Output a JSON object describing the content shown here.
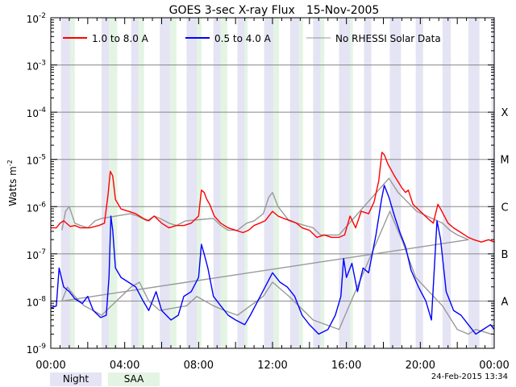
{
  "chart_data": {
    "type": "line",
    "title": "GOES 3-sec X-ray Flux",
    "date": "15-Nov-2005",
    "ylabel_base": "Watts m",
    "ylabel_exp": "-2",
    "ylim_log10": [
      -9,
      -2
    ],
    "xlim_hours": [
      0,
      24
    ],
    "x_ticks": [
      {
        "h": 0,
        "label": "00:00"
      },
      {
        "h": 4,
        "label": "04:00"
      },
      {
        "h": 8,
        "label": "08:00"
      },
      {
        "h": 12,
        "label": "12:00"
      },
      {
        "h": 16,
        "label": "16:00"
      },
      {
        "h": 20,
        "label": "20:00"
      },
      {
        "h": 24,
        "label": "00:00"
      }
    ],
    "y_ticks": [
      {
        "e": -2,
        "base": "10",
        "exp": "-2"
      },
      {
        "e": -3,
        "base": "10",
        "exp": "-3"
      },
      {
        "e": -4,
        "base": "10",
        "exp": "-4"
      },
      {
        "e": -5,
        "base": "10",
        "exp": "-5"
      },
      {
        "e": -6,
        "base": "10",
        "exp": "-6"
      },
      {
        "e": -7,
        "base": "10",
        "exp": "-7"
      },
      {
        "e": -8,
        "base": "10",
        "exp": "-8"
      },
      {
        "e": -9,
        "base": "10",
        "exp": "-9"
      }
    ],
    "flare_classes": [
      {
        "label": "X",
        "e": -4
      },
      {
        "label": "M",
        "e": -5
      },
      {
        "label": "C",
        "e": -6
      },
      {
        "label": "B",
        "e": -7
      },
      {
        "label": "A",
        "e": -8
      }
    ],
    "legend": [
      {
        "label": "1.0 to 8.0 A",
        "color": "#ff0000"
      },
      {
        "label": "0.5 to 4.0 A",
        "color": "#0000ff"
      },
      {
        "label": "No RHESSI Solar Data",
        "color": "#999999"
      }
    ],
    "night_bands_hours": [
      [
        0.55,
        1.05
      ],
      [
        2.75,
        3.15
      ],
      [
        4.35,
        4.75
      ],
      [
        5.9,
        6.45
      ],
      [
        7.35,
        7.9
      ],
      [
        8.8,
        9.2
      ],
      [
        10.1,
        10.5
      ],
      [
        11.55,
        12.05
      ],
      [
        12.95,
        13.45
      ],
      [
        14.2,
        14.6
      ],
      [
        15.6,
        16.2
      ],
      [
        16.95,
        17.35
      ],
      [
        18.35,
        18.95
      ],
      [
        19.75,
        20.15
      ],
      [
        21.2,
        21.65
      ],
      [
        22.6,
        23.2
      ],
      [
        23.85,
        24
      ]
    ],
    "saa_bands_hours": [
      [
        1.05,
        1.3
      ],
      [
        3.15,
        3.6
      ],
      [
        4.75,
        5.05
      ],
      [
        6.45,
        6.8
      ],
      [
        7.9,
        8.15
      ],
      [
        9.2,
        9.55
      ],
      [
        10.5,
        10.65
      ],
      [
        12.05,
        12.35
      ],
      [
        13.45,
        13.65
      ],
      [
        14.6,
        14.8
      ],
      [
        16.2,
        16.35
      ]
    ],
    "series": [
      {
        "name": "1.0 to 8.0 A",
        "color": "#ff0000",
        "points": [
          [
            0,
            -6.45
          ],
          [
            0.3,
            -6.45
          ],
          [
            0.5,
            -6.35
          ],
          [
            0.7,
            -6.3
          ],
          [
            1.05,
            -6.42
          ],
          [
            1.3,
            -6.4
          ],
          [
            1.6,
            -6.45
          ],
          [
            2.1,
            -6.45
          ],
          [
            2.6,
            -6.4
          ],
          [
            2.9,
            -6.35
          ],
          [
            3.1,
            -5.75
          ],
          [
            3.22,
            -5.25
          ],
          [
            3.35,
            -5.35
          ],
          [
            3.5,
            -5.85
          ],
          [
            3.8,
            -6.05
          ],
          [
            4.2,
            -6.1
          ],
          [
            4.6,
            -6.15
          ],
          [
            5.0,
            -6.25
          ],
          [
            5.3,
            -6.3
          ],
          [
            5.6,
            -6.2
          ],
          [
            6.0,
            -6.35
          ],
          [
            6.4,
            -6.45
          ],
          [
            6.8,
            -6.4
          ],
          [
            7.2,
            -6.4
          ],
          [
            7.6,
            -6.35
          ],
          [
            8.0,
            -6.2
          ],
          [
            8.15,
            -5.65
          ],
          [
            8.3,
            -5.7
          ],
          [
            8.45,
            -5.85
          ],
          [
            8.6,
            -5.95
          ],
          [
            8.85,
            -6.2
          ],
          [
            9.2,
            -6.35
          ],
          [
            9.6,
            -6.45
          ],
          [
            10.0,
            -6.5
          ],
          [
            10.4,
            -6.55
          ],
          [
            10.7,
            -6.5
          ],
          [
            11.0,
            -6.4
          ],
          [
            11.3,
            -6.35
          ],
          [
            11.6,
            -6.3
          ],
          [
            12.0,
            -6.1
          ],
          [
            12.3,
            -6.2
          ],
          [
            12.6,
            -6.25
          ],
          [
            13.0,
            -6.3
          ],
          [
            13.3,
            -6.35
          ],
          [
            13.6,
            -6.45
          ],
          [
            14.0,
            -6.5
          ],
          [
            14.4,
            -6.65
          ],
          [
            14.8,
            -6.6
          ],
          [
            15.2,
            -6.65
          ],
          [
            15.6,
            -6.65
          ],
          [
            15.9,
            -6.6
          ],
          [
            16.2,
            -6.2
          ],
          [
            16.5,
            -6.45
          ],
          [
            16.8,
            -6.1
          ],
          [
            17.2,
            -6.15
          ],
          [
            17.5,
            -5.9
          ],
          [
            17.75,
            -5.45
          ],
          [
            17.92,
            -4.85
          ],
          [
            18.05,
            -4.9
          ],
          [
            18.25,
            -5.1
          ],
          [
            18.6,
            -5.35
          ],
          [
            19.0,
            -5.6
          ],
          [
            19.2,
            -5.7
          ],
          [
            19.35,
            -5.65
          ],
          [
            19.6,
            -5.95
          ],
          [
            20.0,
            -6.1
          ],
          [
            20.4,
            -6.25
          ],
          [
            20.7,
            -6.35
          ],
          [
            20.95,
            -5.95
          ],
          [
            21.1,
            -6.05
          ],
          [
            21.5,
            -6.35
          ],
          [
            21.8,
            -6.45
          ],
          [
            22.2,
            -6.55
          ],
          [
            22.6,
            -6.65
          ],
          [
            22.9,
            -6.7
          ],
          [
            23.3,
            -6.75
          ],
          [
            23.7,
            -6.7
          ],
          [
            24,
            -6.75
          ]
        ]
      },
      {
        "name": "0.5 to 4.0 A",
        "color": "#0000ff",
        "points": [
          [
            0,
            -8.15
          ],
          [
            0.3,
            -8.1
          ],
          [
            0.45,
            -7.3
          ],
          [
            0.7,
            -7.7
          ],
          [
            1.0,
            -7.8
          ],
          [
            1.3,
            -7.95
          ],
          [
            1.7,
            -8.05
          ],
          [
            2.0,
            -7.9
          ],
          [
            2.3,
            -8.2
          ],
          [
            2.7,
            -8.35
          ],
          [
            3.0,
            -8.3
          ],
          [
            3.15,
            -7.5
          ],
          [
            3.25,
            -6.2
          ],
          [
            3.35,
            -6.5
          ],
          [
            3.5,
            -7.3
          ],
          [
            3.8,
            -7.5
          ],
          [
            4.2,
            -7.6
          ],
          [
            4.6,
            -7.7
          ],
          [
            5.0,
            -8.0
          ],
          [
            5.3,
            -8.2
          ],
          [
            5.7,
            -7.8
          ],
          [
            6.0,
            -8.2
          ],
          [
            6.5,
            -8.4
          ],
          [
            6.9,
            -8.3
          ],
          [
            7.2,
            -7.9
          ],
          [
            7.6,
            -7.8
          ],
          [
            8.0,
            -7.5
          ],
          [
            8.15,
            -6.8
          ],
          [
            8.3,
            -7.0
          ],
          [
            8.5,
            -7.3
          ],
          [
            8.8,
            -7.9
          ],
          [
            9.2,
            -8.1
          ],
          [
            9.6,
            -8.3
          ],
          [
            10.0,
            -8.4
          ],
          [
            10.5,
            -8.5
          ],
          [
            10.8,
            -8.3
          ],
          [
            11.2,
            -8.0
          ],
          [
            11.6,
            -7.7
          ],
          [
            12.0,
            -7.4
          ],
          [
            12.4,
            -7.6
          ],
          [
            12.8,
            -7.7
          ],
          [
            13.2,
            -7.9
          ],
          [
            13.6,
            -8.3
          ],
          [
            14.0,
            -8.5
          ],
          [
            14.5,
            -8.7
          ],
          [
            15.0,
            -8.6
          ],
          [
            15.4,
            -8.3
          ],
          [
            15.7,
            -7.9
          ],
          [
            15.85,
            -7.1
          ],
          [
            16.0,
            -7.5
          ],
          [
            16.3,
            -7.2
          ],
          [
            16.6,
            -7.8
          ],
          [
            16.9,
            -7.3
          ],
          [
            17.2,
            -7.4
          ],
          [
            17.6,
            -6.6
          ],
          [
            17.9,
            -5.85
          ],
          [
            18.05,
            -5.55
          ],
          [
            18.3,
            -5.8
          ],
          [
            18.6,
            -6.2
          ],
          [
            18.9,
            -6.55
          ],
          [
            19.2,
            -6.85
          ],
          [
            19.5,
            -7.35
          ],
          [
            19.9,
            -7.7
          ],
          [
            20.3,
            -8.0
          ],
          [
            20.6,
            -8.4
          ],
          [
            20.9,
            -6.3
          ],
          [
            21.1,
            -6.7
          ],
          [
            21.4,
            -7.8
          ],
          [
            21.8,
            -8.2
          ],
          [
            22.2,
            -8.3
          ],
          [
            22.6,
            -8.5
          ],
          [
            23.0,
            -8.7
          ],
          [
            23.4,
            -8.6
          ],
          [
            23.8,
            -8.5
          ],
          [
            24,
            -8.6
          ]
        ]
      },
      {
        "name": "No RHESSI Solar Data",
        "color": "#999999",
        "points": [
          [
            0.6,
            -6.5
          ],
          [
            0.8,
            -6.1
          ],
          [
            1.0,
            -6.0
          ],
          [
            1.3,
            -6.35
          ],
          [
            1.6,
            -6.4
          ],
          [
            2.0,
            -6.45
          ],
          [
            2.4,
            -6.3
          ],
          [
            2.75,
            -6.25
          ],
          [
            4.3,
            -6.15
          ],
          [
            4.7,
            -6.2
          ],
          [
            5.2,
            -6.3
          ],
          [
            5.6,
            -6.2
          ],
          [
            5.9,
            -6.25
          ],
          [
            6.4,
            -6.35
          ],
          [
            6.8,
            -6.4
          ],
          [
            7.3,
            -6.3
          ],
          [
            8.8,
            -6.25
          ],
          [
            9.2,
            -6.4
          ],
          [
            9.6,
            -6.5
          ],
          [
            10.1,
            -6.5
          ],
          [
            10.6,
            -6.35
          ],
          [
            11.0,
            -6.3
          ],
          [
            11.5,
            -6.15
          ],
          [
            11.8,
            -5.8
          ],
          [
            12.0,
            -5.7
          ],
          [
            12.3,
            -6.0
          ],
          [
            12.9,
            -6.3
          ],
          [
            14.2,
            -6.45
          ],
          [
            14.6,
            -6.6
          ],
          [
            15.0,
            -6.6
          ],
          [
            15.6,
            -6.6
          ],
          [
            18.3,
            -5.4
          ],
          [
            18.8,
            -5.7
          ],
          [
            19.3,
            -5.9
          ],
          [
            19.8,
            -6.1
          ],
          [
            21.2,
            -6.35
          ],
          [
            21.6,
            -6.5
          ],
          [
            22.0,
            -6.6
          ],
          [
            22.6,
            -6.7
          ],
          [
            0.6,
            -8.0
          ],
          [
            0.9,
            -7.7
          ],
          [
            1.3,
            -7.9
          ],
          [
            1.8,
            -8.1
          ],
          [
            2.3,
            -8.2
          ],
          [
            2.75,
            -8.3
          ],
          [
            4.35,
            -7.7
          ],
          [
            4.8,
            -7.6
          ],
          [
            5.3,
            -8.0
          ],
          [
            5.9,
            -8.2
          ],
          [
            7.35,
            -8.1
          ],
          [
            7.9,
            -7.9
          ],
          [
            8.8,
            -8.1
          ],
          [
            9.4,
            -8.2
          ],
          [
            10.1,
            -8.3
          ],
          [
            11.5,
            -7.9
          ],
          [
            12.0,
            -7.6
          ],
          [
            12.9,
            -7.9
          ],
          [
            14.2,
            -8.4
          ],
          [
            15.6,
            -8.6
          ],
          [
            18.35,
            -6.1
          ],
          [
            19.0,
            -6.7
          ],
          [
            19.75,
            -7.5
          ],
          [
            21.2,
            -8.1
          ],
          [
            22.0,
            -8.6
          ],
          [
            22.6,
            -8.7
          ],
          [
            23.0,
            -8.6
          ],
          [
            23.85,
            -8.7
          ]
        ]
      }
    ]
  },
  "footer": {
    "night_label": "Night",
    "saa_label": "SAA",
    "night_color": "#e4e4f4",
    "saa_color": "#e4f4e4",
    "timestamp": "24-Feb-2015 13:34"
  }
}
